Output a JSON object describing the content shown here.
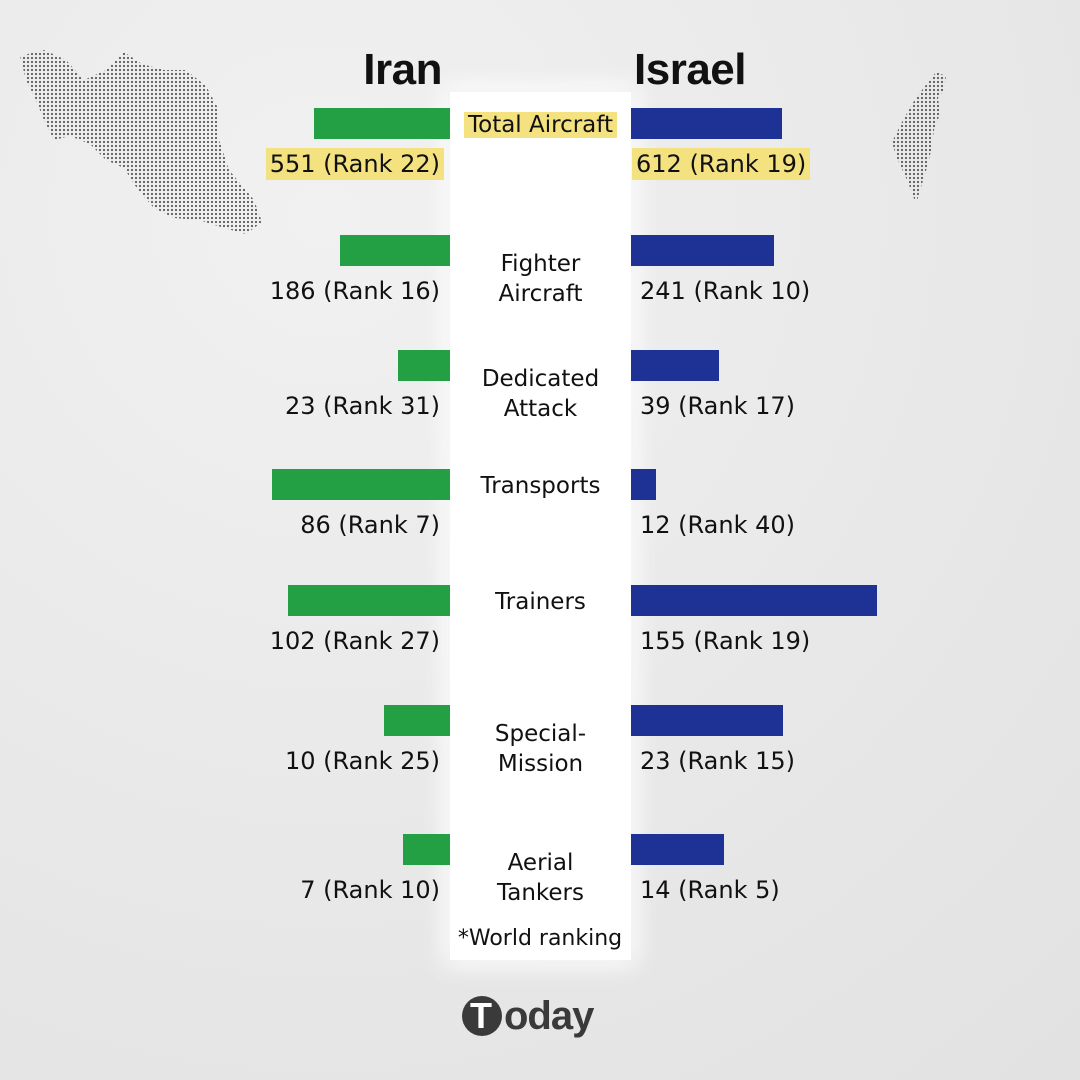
{
  "headers": {
    "left": "Iran",
    "right": "Israel"
  },
  "footnote": "*World ranking",
  "logo": {
    "mark": "T",
    "text": "oday"
  },
  "colors": {
    "iran": "#23a043",
    "israel": "#1d3294",
    "highlight": "#f3e27f"
  },
  "chart_data": {
    "type": "bar",
    "orientation": "horizontal-diverging",
    "series": [
      {
        "name": "Iran",
        "values": [
          551,
          186,
          23,
          86,
          102,
          10,
          7
        ],
        "labels": [
          "551 (Rank 22)",
          "186 (Rank 16)",
          "23 (Rank 31)",
          "86 (Rank 7)",
          "102 (Rank 27)",
          "10 (Rank 25)",
          "7 (Rank 10)"
        ]
      },
      {
        "name": "Israel",
        "values": [
          612,
          241,
          39,
          12,
          155,
          23,
          14
        ],
        "labels": [
          "612 (Rank 19)",
          "241 (Rank 10)",
          "39 (Rank 17)",
          "12 (Rank 40)",
          "155 (Rank 19)",
          "23 (Rank 15)",
          "14 (Rank 5)"
        ]
      }
    ],
    "categories": [
      {
        "line1": "Total Aircraft",
        "line2": ""
      },
      {
        "line1": "Fighter",
        "line2": "Aircraft"
      },
      {
        "line1": "Dedicated",
        "line2": "Attack"
      },
      {
        "line1": "Transports",
        "line2": ""
      },
      {
        "line1": "Trainers",
        "line2": ""
      },
      {
        "line1": "Special-",
        "line2": "Mission"
      },
      {
        "line1": "Aerial",
        "line2": "Tankers"
      }
    ],
    "highlighted_category": 0
  }
}
